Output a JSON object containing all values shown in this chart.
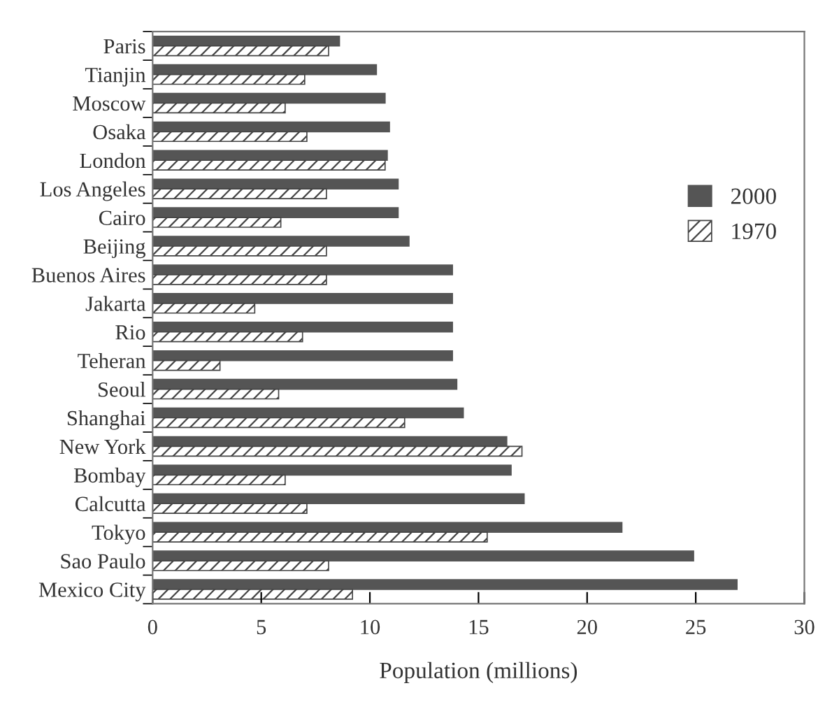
{
  "chart_data": {
    "type": "bar",
    "orientation": "horizontal",
    "xlabel": "Population (millions)",
    "categories": [
      "Paris",
      "Tianjin",
      "Moscow",
      "Osaka",
      "London",
      "Los Angeles",
      "Cairo",
      "Beijing",
      "Buenos Aires",
      "Jakarta",
      "Rio",
      "Teheran",
      "Seoul",
      "Shanghai",
      "New York",
      "Bombay",
      "Calcutta",
      "Tokyo",
      "Sao Paulo",
      "Mexico City"
    ],
    "series": [
      {
        "name": "2000",
        "color": "#555555",
        "values": [
          8.6,
          10.3,
          10.7,
          10.9,
          10.8,
          11.3,
          11.3,
          11.8,
          13.8,
          13.8,
          13.8,
          13.8,
          14.0,
          14.3,
          16.3,
          16.5,
          17.1,
          21.6,
          24.9,
          26.9
        ]
      },
      {
        "name": "1970",
        "color": "#444444",
        "values": [
          8.1,
          7.0,
          6.1,
          7.1,
          10.7,
          8.0,
          5.9,
          8.0,
          8.0,
          4.7,
          6.9,
          3.1,
          5.8,
          11.6,
          17.0,
          6.1,
          7.1,
          15.4,
          8.1,
          9.2
        ]
      }
    ],
    "xlim": [
      0,
      30
    ],
    "xticks": [
      0,
      5,
      10,
      15,
      20,
      25,
      30
    ],
    "grid": false,
    "legend": "right"
  }
}
